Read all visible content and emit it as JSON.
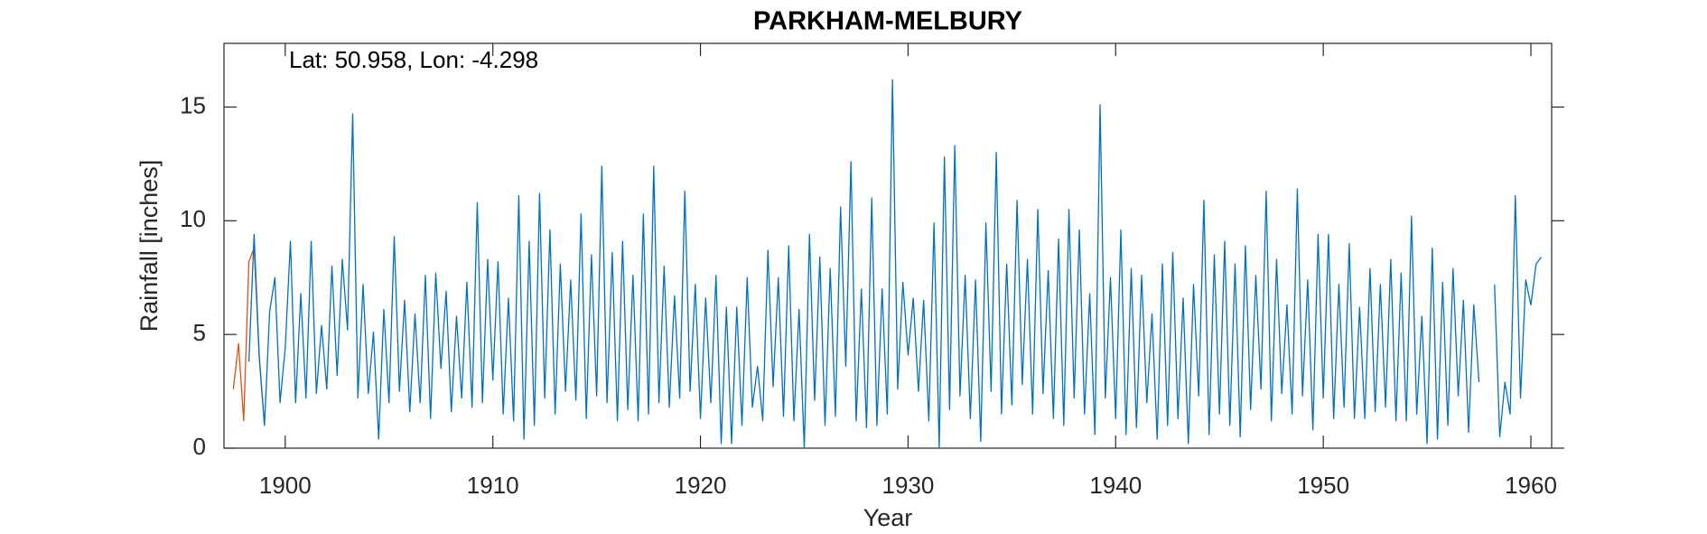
{
  "chart_data": {
    "type": "line",
    "title": "PARKHAM-MELBURY",
    "annotation": "Lat: 50.958, Lon: -4.298",
    "x_label": "Year",
    "y_label": "Rainfall [inches]",
    "x": [
      1897.5,
      1897.75,
      1898,
      1898.25,
      1898.5,
      1898.75,
      1899,
      1899.25,
      1899.5,
      1899.75,
      1900,
      1900.25,
      1900.5,
      1900.75,
      1901,
      1901.25,
      1901.5,
      1901.75,
      1902,
      1902.25,
      1902.5,
      1902.75,
      1903,
      1903.25,
      1903.5,
      1903.75,
      1904,
      1904.25,
      1904.5,
      1904.75,
      1905,
      1905.25,
      1905.5,
      1905.75,
      1906,
      1906.25,
      1906.5,
      1906.75,
      1907,
      1907.25,
      1907.5,
      1907.75,
      1908,
      1908.25,
      1908.5,
      1908.75,
      1909,
      1909.25,
      1909.5,
      1909.75,
      1910,
      1910.25,
      1910.5,
      1910.75,
      1911,
      1911.25,
      1911.5,
      1911.75,
      1912,
      1912.25,
      1912.5,
      1912.75,
      1913,
      1913.25,
      1913.5,
      1913.75,
      1914,
      1914.25,
      1914.5,
      1914.75,
      1915,
      1915.25,
      1915.5,
      1915.75,
      1916,
      1916.25,
      1916.5,
      1916.75,
      1917,
      1917.25,
      1917.5,
      1917.75,
      1918,
      1918.25,
      1918.5,
      1918.75,
      1919,
      1919.25,
      1919.5,
      1919.75,
      1920,
      1920.25,
      1920.5,
      1920.75,
      1921,
      1921.25,
      1921.5,
      1921.75,
      1922,
      1922.25,
      1922.5,
      1922.75,
      1923,
      1923.25,
      1923.5,
      1923.75,
      1924,
      1924.25,
      1924.5,
      1924.75,
      1925,
      1925.25,
      1925.5,
      1925.75,
      1926,
      1926.25,
      1926.5,
      1926.75,
      1927,
      1927.25,
      1927.5,
      1927.75,
      1928,
      1928.25,
      1928.5,
      1928.75,
      1929,
      1929.25,
      1929.5,
      1929.75,
      1930,
      1930.25,
      1930.5,
      1930.75,
      1931,
      1931.25,
      1931.5,
      1931.75,
      1932,
      1932.25,
      1932.5,
      1932.75,
      1933,
      1933.25,
      1933.5,
      1933.75,
      1934,
      1934.25,
      1934.5,
      1934.75,
      1935,
      1935.25,
      1935.5,
      1935.75,
      1936,
      1936.25,
      1936.5,
      1936.75,
      1937,
      1937.25,
      1937.5,
      1937.75,
      1938,
      1938.25,
      1938.5,
      1938.75,
      1939,
      1939.25,
      1939.5,
      1939.75,
      1940,
      1940.25,
      1940.5,
      1940.75,
      1941,
      1941.25,
      1941.5,
      1941.75,
      1942,
      1942.25,
      1942.5,
      1942.75,
      1943,
      1943.25,
      1943.5,
      1943.75,
      1944,
      1944.25,
      1944.5,
      1944.75,
      1945,
      1945.25,
      1945.5,
      1945.75,
      1946,
      1946.25,
      1946.5,
      1946.75,
      1947,
      1947.25,
      1947.5,
      1947.75,
      1948,
      1948.25,
      1948.5,
      1948.75,
      1949,
      1949.25,
      1949.5,
      1949.75,
      1950,
      1950.25,
      1950.5,
      1950.75,
      1951,
      1951.25,
      1951.5,
      1951.75,
      1952,
      1952.25,
      1952.5,
      1952.75,
      1953,
      1953.25,
      1953.5,
      1953.75,
      1954,
      1954.25,
      1954.5,
      1954.75,
      1955,
      1955.25,
      1955.5,
      1955.75,
      1956,
      1956.25,
      1956.5,
      1956.75,
      1957,
      1957.25,
      1957.5,
      1957.75,
      1958,
      1958.25,
      1958.5,
      1958.75,
      1959,
      1959.25,
      1959.5,
      1959.75,
      1960,
      1960.25,
      1960.5
    ],
    "series": [
      {
        "color": "#D95319",
        "values": [
          2.6,
          4.6,
          1.2,
          8.2,
          8.8,
          4.0,
          1.0,
          null,
          null,
          null,
          null,
          null,
          null,
          null,
          null,
          null,
          null,
          null,
          null,
          null,
          null,
          null,
          null,
          null,
          null,
          null,
          null,
          null,
          null,
          null,
          null,
          null,
          null,
          null,
          null,
          null,
          null,
          null,
          null,
          null,
          null,
          null,
          null,
          null,
          null,
          null,
          null,
          null,
          null,
          null,
          null,
          null,
          null,
          null,
          null,
          null,
          null,
          null,
          null,
          null,
          null,
          null,
          null,
          null,
          null,
          null,
          null,
          null,
          null,
          null,
          null,
          null,
          null,
          null,
          null,
          null,
          null,
          null,
          null,
          null,
          null,
          null,
          null,
          null,
          null,
          null,
          null,
          null,
          null,
          null,
          null,
          null,
          null,
          null,
          null,
          null,
          null,
          null,
          null,
          null,
          null,
          null,
          null,
          null,
          null,
          null,
          null,
          null,
          null,
          null,
          null,
          null,
          null,
          null,
          null,
          null,
          null,
          null,
          null,
          null,
          null,
          null,
          null,
          null,
          null,
          null,
          null,
          null,
          null,
          null,
          null,
          null,
          null,
          null,
          null,
          null,
          null,
          null,
          null,
          null,
          null,
          null,
          null,
          null,
          null,
          null,
          null,
          null,
          null,
          null,
          null,
          null,
          null,
          null,
          null,
          null,
          null,
          null,
          null,
          null,
          null,
          null,
          null,
          null,
          null,
          null,
          null,
          null,
          null,
          null,
          null,
          null,
          null,
          null,
          null,
          null,
          null,
          null,
          null,
          null,
          null,
          null,
          null,
          null,
          null,
          null,
          null,
          null,
          null,
          null,
          null,
          null,
          null,
          null,
          null,
          null,
          null,
          null,
          null,
          null,
          null,
          null,
          null,
          null,
          null,
          null,
          null,
          null,
          null,
          null,
          null,
          null,
          null,
          null,
          null,
          null,
          null,
          null,
          null,
          null,
          null,
          null,
          null,
          null,
          null,
          null,
          null,
          null,
          null,
          null,
          null,
          null,
          null,
          null,
          null,
          null,
          null,
          null,
          null,
          null,
          null,
          null,
          null,
          null,
          null,
          null,
          null,
          null,
          null,
          null,
          null,
          null,
          null
        ]
      },
      {
        "color": "#0072BD",
        "values": [
          null,
          null,
          null,
          3.8,
          9.4,
          4.0,
          1.0,
          6.0,
          7.5,
          2.0,
          4.4,
          9.1,
          2.0,
          6.8,
          2.2,
          9.1,
          2.4,
          5.4,
          2.6,
          8.0,
          3.2,
          8.3,
          5.2,
          14.7,
          2.2,
          7.2,
          2.4,
          5.1,
          0.4,
          6.1,
          2.0,
          9.3,
          2.5,
          6.5,
          1.6,
          5.9,
          2.0,
          7.6,
          1.3,
          7.7,
          3.5,
          6.9,
          1.6,
          5.8,
          2.2,
          7.3,
          1.8,
          10.8,
          2.0,
          8.3,
          3.0,
          8.2,
          1.5,
          6.6,
          1.2,
          11.1,
          0.4,
          9.1,
          1.0,
          11.2,
          2.2,
          9.6,
          1.5,
          8.1,
          2.5,
          7.4,
          2.1,
          10.3,
          1.3,
          8.5,
          2.3,
          12.4,
          2.0,
          8.6,
          1.2,
          9.1,
          1.7,
          7.6,
          1.2,
          10.3,
          1.5,
          12.4,
          2.0,
          8.0,
          1.8,
          6.7,
          2.2,
          11.3,
          2.5,
          7.2,
          1.3,
          6.6,
          2.0,
          7.6,
          0.2,
          6.2,
          0.2,
          6.2,
          1.0,
          7.5,
          1.8,
          3.6,
          1.2,
          8.7,
          2.7,
          7.5,
          1.4,
          8.9,
          1.2,
          6.1,
          0.0,
          9.4,
          2.1,
          8.4,
          1.0,
          7.9,
          1.4,
          10.6,
          3.6,
          12.6,
          1.2,
          7.0,
          0.9,
          11.0,
          1.0,
          7.0,
          1.5,
          16.2,
          2.6,
          7.3,
          4.1,
          6.6,
          2.5,
          6.5,
          1.2,
          9.9,
          0.0,
          12.8,
          1.7,
          13.3,
          2.3,
          7.6,
          1.3,
          7.4,
          0.3,
          9.9,
          2.5,
          13.0,
          1.5,
          8.1,
          1.9,
          10.9,
          2.8,
          8.3,
          1.5,
          10.5,
          2.4,
          7.8,
          1.3,
          9.2,
          1.0,
          10.5,
          2.2,
          9.6,
          1.5,
          6.8,
          0.6,
          15.1,
          2.2,
          7.5,
          1.3,
          9.6,
          0.6,
          7.9,
          0.9,
          7.6,
          2.0,
          5.9,
          0.4,
          8.1,
          1.0,
          8.6,
          1.3,
          6.6,
          0.2,
          7.2,
          2.3,
          10.9,
          0.6,
          8.5,
          1.5,
          9.1,
          1.0,
          8.1,
          0.5,
          8.9,
          1.7,
          7.6,
          2.6,
          11.3,
          1.2,
          8.3,
          2.4,
          6.3,
          1.5,
          11.4,
          2.3,
          7.4,
          0.8,
          9.4,
          2.2,
          9.4,
          1.3,
          7.2,
          1.8,
          9.0,
          1.3,
          6.2,
          1.3,
          7.9,
          1.6,
          7.2,
          1.8,
          8.3,
          1.2,
          7.7,
          1.2,
          10.2,
          1.5,
          5.8,
          0.2,
          8.8,
          0.4,
          7.3,
          1.0,
          7.9,
          2.3,
          6.5,
          0.7,
          6.3,
          2.9,
          null,
          null,
          7.2,
          0.5,
          2.9,
          1.5,
          11.1,
          2.2,
          7.4,
          6.3,
          8.1,
          8.4
        ]
      }
    ],
    "xlim": [
      1897.05,
      1961
    ],
    "xticks": [
      1900,
      1910,
      1920,
      1930,
      1940,
      1950,
      1960
    ],
    "ylim": [
      0,
      17.8
    ],
    "yticks": [
      0,
      5,
      10,
      15
    ],
    "grid": false,
    "box": true
  }
}
